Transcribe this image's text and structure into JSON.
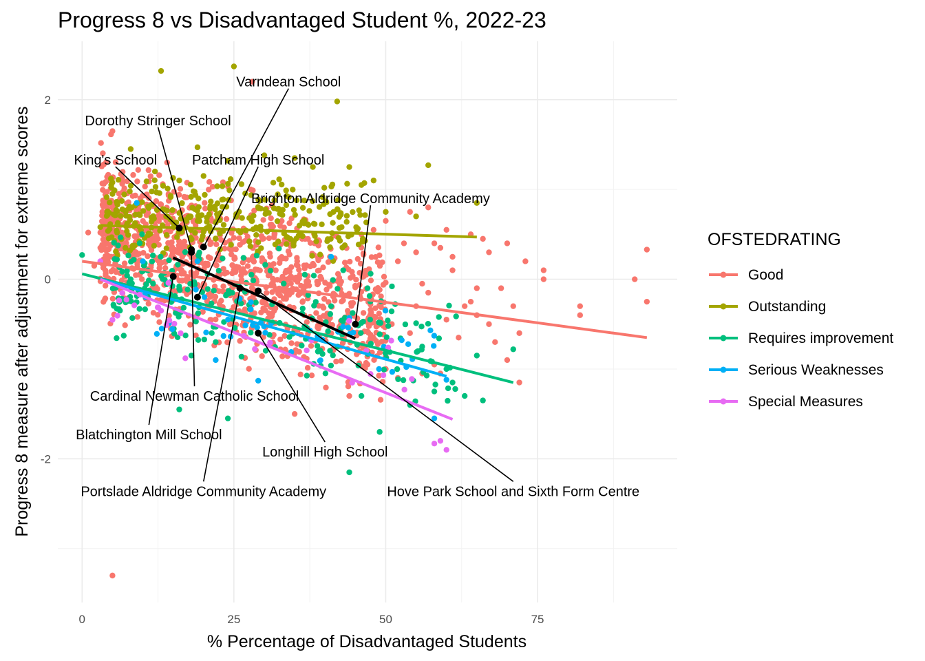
{
  "chart_data": {
    "type": "scatter",
    "title": "Progress 8 vs Disadvantaged Student %, 2022-23",
    "xlabel": "% Percentage of Disadvantaged Students",
    "ylabel": "Progress 8 measure after adjustment for extreme scores",
    "xlim": [
      -4,
      98
    ],
    "ylim": [
      -3.6,
      2.65
    ],
    "x_ticks": [
      0,
      25,
      50,
      75
    ],
    "y_ticks": [
      -2,
      0,
      2
    ],
    "grid": true,
    "legend": {
      "title": "OFSTEDRATING",
      "placement": "right",
      "entries": [
        {
          "name": "Good",
          "color": "#F8766D"
        },
        {
          "name": "Outstanding",
          "color": "#A3A500"
        },
        {
          "name": "Requires improvement",
          "color": "#00BF7D"
        },
        {
          "name": "Serious Weaknesses",
          "color": "#00B0F6"
        },
        {
          "name": "Special Measures",
          "color": "#E76BF3"
        }
      ]
    },
    "series": [
      {
        "name": "Good",
        "color": "#F8766D",
        "cloud": {
          "count": 1100,
          "x_range": [
            3,
            50
          ],
          "y_center": 0.05,
          "y_spread": 0.38,
          "slope": -0.022,
          "seed": 11
        },
        "points": [
          [
            5,
            1.65
          ],
          [
            5,
            -3.3
          ],
          [
            28,
            2.2
          ],
          [
            14,
            1.3
          ],
          [
            93,
            0.33
          ],
          [
            93,
            -0.25
          ],
          [
            91,
            0
          ],
          [
            82,
            -0.3
          ],
          [
            82,
            -0.4
          ],
          [
            76,
            0
          ],
          [
            76,
            0.1
          ],
          [
            73,
            0.2
          ],
          [
            70,
            0.4
          ],
          [
            69,
            -0.1
          ],
          [
            67,
            0.3
          ],
          [
            66,
            0.45
          ],
          [
            64,
            0.5
          ],
          [
            63,
            -0.3
          ],
          [
            61,
            0.1
          ],
          [
            60,
            0.55
          ],
          [
            59,
            0.35
          ],
          [
            58,
            0.4
          ],
          [
            57,
            0.8
          ],
          [
            56,
            -0.05
          ],
          [
            55,
            0.3
          ],
          [
            54,
            0.75
          ],
          [
            53,
            0.4
          ],
          [
            52,
            0.2
          ],
          [
            50,
            0.65
          ],
          [
            60,
            -0.45
          ],
          [
            62,
            -0.65
          ],
          [
            65,
            -0.4
          ],
          [
            67,
            -0.5
          ],
          [
            68,
            -0.7
          ],
          [
            71,
            -0.3
          ],
          [
            72,
            -0.6
          ],
          [
            72,
            -1.15
          ],
          [
            70,
            -0.9
          ],
          [
            54,
            -0.6
          ],
          [
            58,
            -0.95
          ],
          [
            56,
            -1.05
          ],
          [
            52,
            -1.1
          ],
          [
            47,
            -0.95
          ],
          [
            50,
            -1.0
          ],
          [
            59,
            -1.05
          ],
          [
            64,
            -0.25
          ],
          [
            44,
            -1.3
          ],
          [
            35,
            -1.5
          ],
          [
            30,
            0.2
          ],
          [
            3,
            0.35
          ],
          [
            2,
            0.15
          ],
          [
            1,
            0.52
          ],
          [
            4,
            0.75
          ],
          [
            46,
            0.5
          ],
          [
            48,
            0.55
          ],
          [
            57,
            -0.15
          ],
          [
            61,
            0.25
          ],
          [
            65,
            -0.1
          ],
          [
            55,
            -0.3
          ],
          [
            51,
            -0.5
          ]
        ]
      },
      {
        "name": "Outstanding",
        "color": "#A3A500",
        "cloud": {
          "count": 320,
          "x_range": [
            4,
            47
          ],
          "y_center": 0.68,
          "y_spread": 0.2,
          "slope": -0.002,
          "seed": 23
        },
        "points": [
          [
            13,
            2.32
          ],
          [
            25,
            2.37
          ],
          [
            42,
            1.98
          ],
          [
            8,
            1.45
          ],
          [
            19,
            1.47
          ],
          [
            30,
            1.38
          ],
          [
            35,
            1.35
          ],
          [
            24,
            1.32
          ],
          [
            57,
            1.27
          ],
          [
            44,
            1.25
          ],
          [
            48,
            1.1
          ],
          [
            46,
            1.05
          ],
          [
            65,
            0.85
          ],
          [
            20,
            1.15
          ],
          [
            12,
            1.2
          ],
          [
            16,
            1.1
          ],
          [
            38,
            1.25
          ],
          [
            5,
            0.95
          ],
          [
            3,
            0.58
          ],
          [
            55,
            0.7
          ],
          [
            50,
            0.75
          ]
        ]
      },
      {
        "name": "Requires improvement",
        "color": "#00BF7D",
        "cloud": {
          "count": 230,
          "x_range": [
            5,
            62
          ],
          "y_center": -0.45,
          "y_spread": 0.28,
          "slope": -0.015,
          "seed": 37
        },
        "points": [
          [
            0,
            0.27
          ],
          [
            16,
            -1.45
          ],
          [
            24,
            -1.55
          ],
          [
            44,
            -2.15
          ],
          [
            49,
            -1.7
          ],
          [
            46,
            -1.3
          ],
          [
            54,
            -1.4
          ],
          [
            58,
            -1.25
          ],
          [
            61,
            -1.15
          ],
          [
            63,
            -1.3
          ],
          [
            66,
            -1.35
          ],
          [
            71,
            -0.78
          ],
          [
            65,
            -0.85
          ],
          [
            60,
            -1.0
          ],
          [
            56,
            -0.75
          ],
          [
            14,
            -0.5
          ],
          [
            18,
            -0.85
          ],
          [
            22,
            -0.7
          ],
          [
            8,
            0.0
          ],
          [
            41,
            -0.3
          ],
          [
            47,
            -0.1
          ],
          [
            43,
            0.1
          ]
        ]
      },
      {
        "name": "Serious Weaknesses",
        "color": "#00B0F6",
        "cloud": {
          "count": 45,
          "x_range": [
            10,
            58
          ],
          "y_center": -0.55,
          "y_spread": 0.18,
          "slope": -0.012,
          "seed": 51
        },
        "points": [
          [
            29,
            -1.13
          ],
          [
            58,
            -1.55
          ],
          [
            60,
            -1.12
          ],
          [
            44,
            -0.43
          ],
          [
            41,
            0.25
          ],
          [
            19,
            0.2
          ],
          [
            9,
            0.85
          ],
          [
            22,
            -0.9
          ],
          [
            10,
            0.2
          ]
        ]
      },
      {
        "name": "Special Measures",
        "color": "#E76BF3",
        "cloud": {
          "count": 28,
          "x_range": [
            5,
            55
          ],
          "y_center": -0.6,
          "y_spread": 0.18,
          "slope": -0.016,
          "seed": 67
        },
        "points": [
          [
            60,
            -1.9
          ],
          [
            59,
            -1.8
          ],
          [
            58,
            -1.83
          ],
          [
            17,
            -0.88
          ],
          [
            13,
            -0.35
          ],
          [
            3,
            0.2
          ]
        ]
      }
    ],
    "trend_lines": [
      {
        "name": "Good",
        "color": "#F8766D",
        "x": [
          0,
          93
        ],
        "y": [
          0.2,
          -0.65
        ]
      },
      {
        "name": "Outstanding",
        "color": "#A3A500",
        "x": [
          3,
          65
        ],
        "y": [
          0.6,
          0.47
        ]
      },
      {
        "name": "Requires improvement",
        "color": "#00BF7D",
        "x": [
          0,
          71
        ],
        "y": [
          0.06,
          -1.15
        ]
      },
      {
        "name": "Serious Weaknesses",
        "color": "#00B0F6",
        "x": [
          3,
          60
        ],
        "y": [
          0.0,
          -1.08
        ]
      },
      {
        "name": "Special Measures",
        "color": "#E76BF3",
        "x": [
          3,
          61
        ],
        "y": [
          0.0,
          -1.56
        ]
      },
      {
        "name": "highlight",
        "color": "#000000",
        "x": [
          15,
          45
        ],
        "y": [
          0.24,
          -0.66
        ]
      }
    ],
    "highlighted_schools": [
      {
        "name": "Varndean School",
        "x": 20,
        "y": 0.36,
        "label_x": 34,
        "label_y": 2.2
      },
      {
        "name": "Dorothy Stringer School",
        "x": 18,
        "y": 0.33,
        "label_x": 12.5,
        "label_y": 1.77
      },
      {
        "name": "King's School",
        "x": 16,
        "y": 0.57,
        "label_x": 5.5,
        "label_y": 1.33
      },
      {
        "name": "Patcham High School",
        "x": 19,
        "y": -0.2,
        "label_x": 29,
        "label_y": 1.33
      },
      {
        "name": "Brighton Aldridge Community Academy",
        "x": 45,
        "y": -0.5,
        "label_x": 47.5,
        "label_y": 0.9
      },
      {
        "name": "Cardinal Newman Catholic School",
        "x": 18,
        "y": 0.3,
        "label_x": 18.5,
        "label_y": -1.3
      },
      {
        "name": "Blatchington Mill School",
        "x": 15,
        "y": 0.03,
        "label_x": 11,
        "label_y": -1.73
      },
      {
        "name": "Longhill High School",
        "x": 29,
        "y": -0.6,
        "label_x": 40,
        "label_y": -1.92
      },
      {
        "name": "Portslade Aldridge Community Academy",
        "x": 26,
        "y": -0.1,
        "label_x": 20,
        "label_y": -2.36
      },
      {
        "name": "Hove Park School and Sixth Form Centre",
        "x": 29,
        "y": -0.13,
        "label_x": 71,
        "label_y": -2.36
      }
    ]
  }
}
